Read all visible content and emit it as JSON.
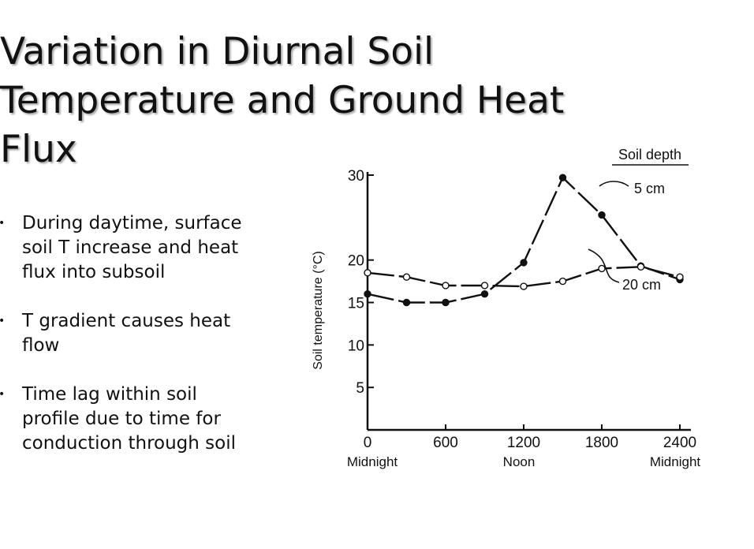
{
  "slide": {
    "title_lines": [
      "Variation in Diurnal Soil",
      "Temperature and Ground Heat",
      "Flux"
    ],
    "bullets": [
      [
        "During daytime, surface",
        "soil T increase and heat",
        "flux into subsoil"
      ],
      [
        "T gradient causes heat",
        "flow"
      ],
      [
        "Time lag within soil",
        "profile due to time for",
        "conduction through soil"
      ]
    ],
    "bullet_glyph": "•"
  },
  "chart_data": {
    "type": "line",
    "xlabel": "",
    "ylabel": "Soil temperature (°C)",
    "xlim": [
      0,
      2400
    ],
    "ylim": [
      0,
      30
    ],
    "x_ticks": [
      {
        "value": 0,
        "label": "0",
        "sub": "Midnight"
      },
      {
        "value": 600,
        "label": "600",
        "sub": ""
      },
      {
        "value": 1200,
        "label": "1200",
        "sub": "Noon"
      },
      {
        "value": 1800,
        "label": "1800",
        "sub": ""
      },
      {
        "value": 2400,
        "label": "2400",
        "sub": "Midnight"
      }
    ],
    "y_ticks": [
      5,
      10,
      15,
      20,
      30
    ],
    "legend_title": "Soil depth",
    "grid": false,
    "series": [
      {
        "name": "5 cm",
        "marker": "filled-circle",
        "color": "#111111",
        "x": [
          0,
          300,
          600,
          900,
          1200,
          1500,
          1800,
          2100,
          2400
        ],
        "y": [
          16,
          15,
          15,
          16,
          19.7,
          29.7,
          25.3,
          19.3,
          17.7
        ]
      },
      {
        "name": "20 cm",
        "marker": "open-circle",
        "color": "#111111",
        "x": [
          0,
          300,
          600,
          900,
          1200,
          1500,
          1800,
          2100,
          2400
        ],
        "y": [
          18.5,
          18,
          17,
          17,
          16.9,
          17.5,
          19,
          19.2,
          18
        ]
      }
    ]
  }
}
